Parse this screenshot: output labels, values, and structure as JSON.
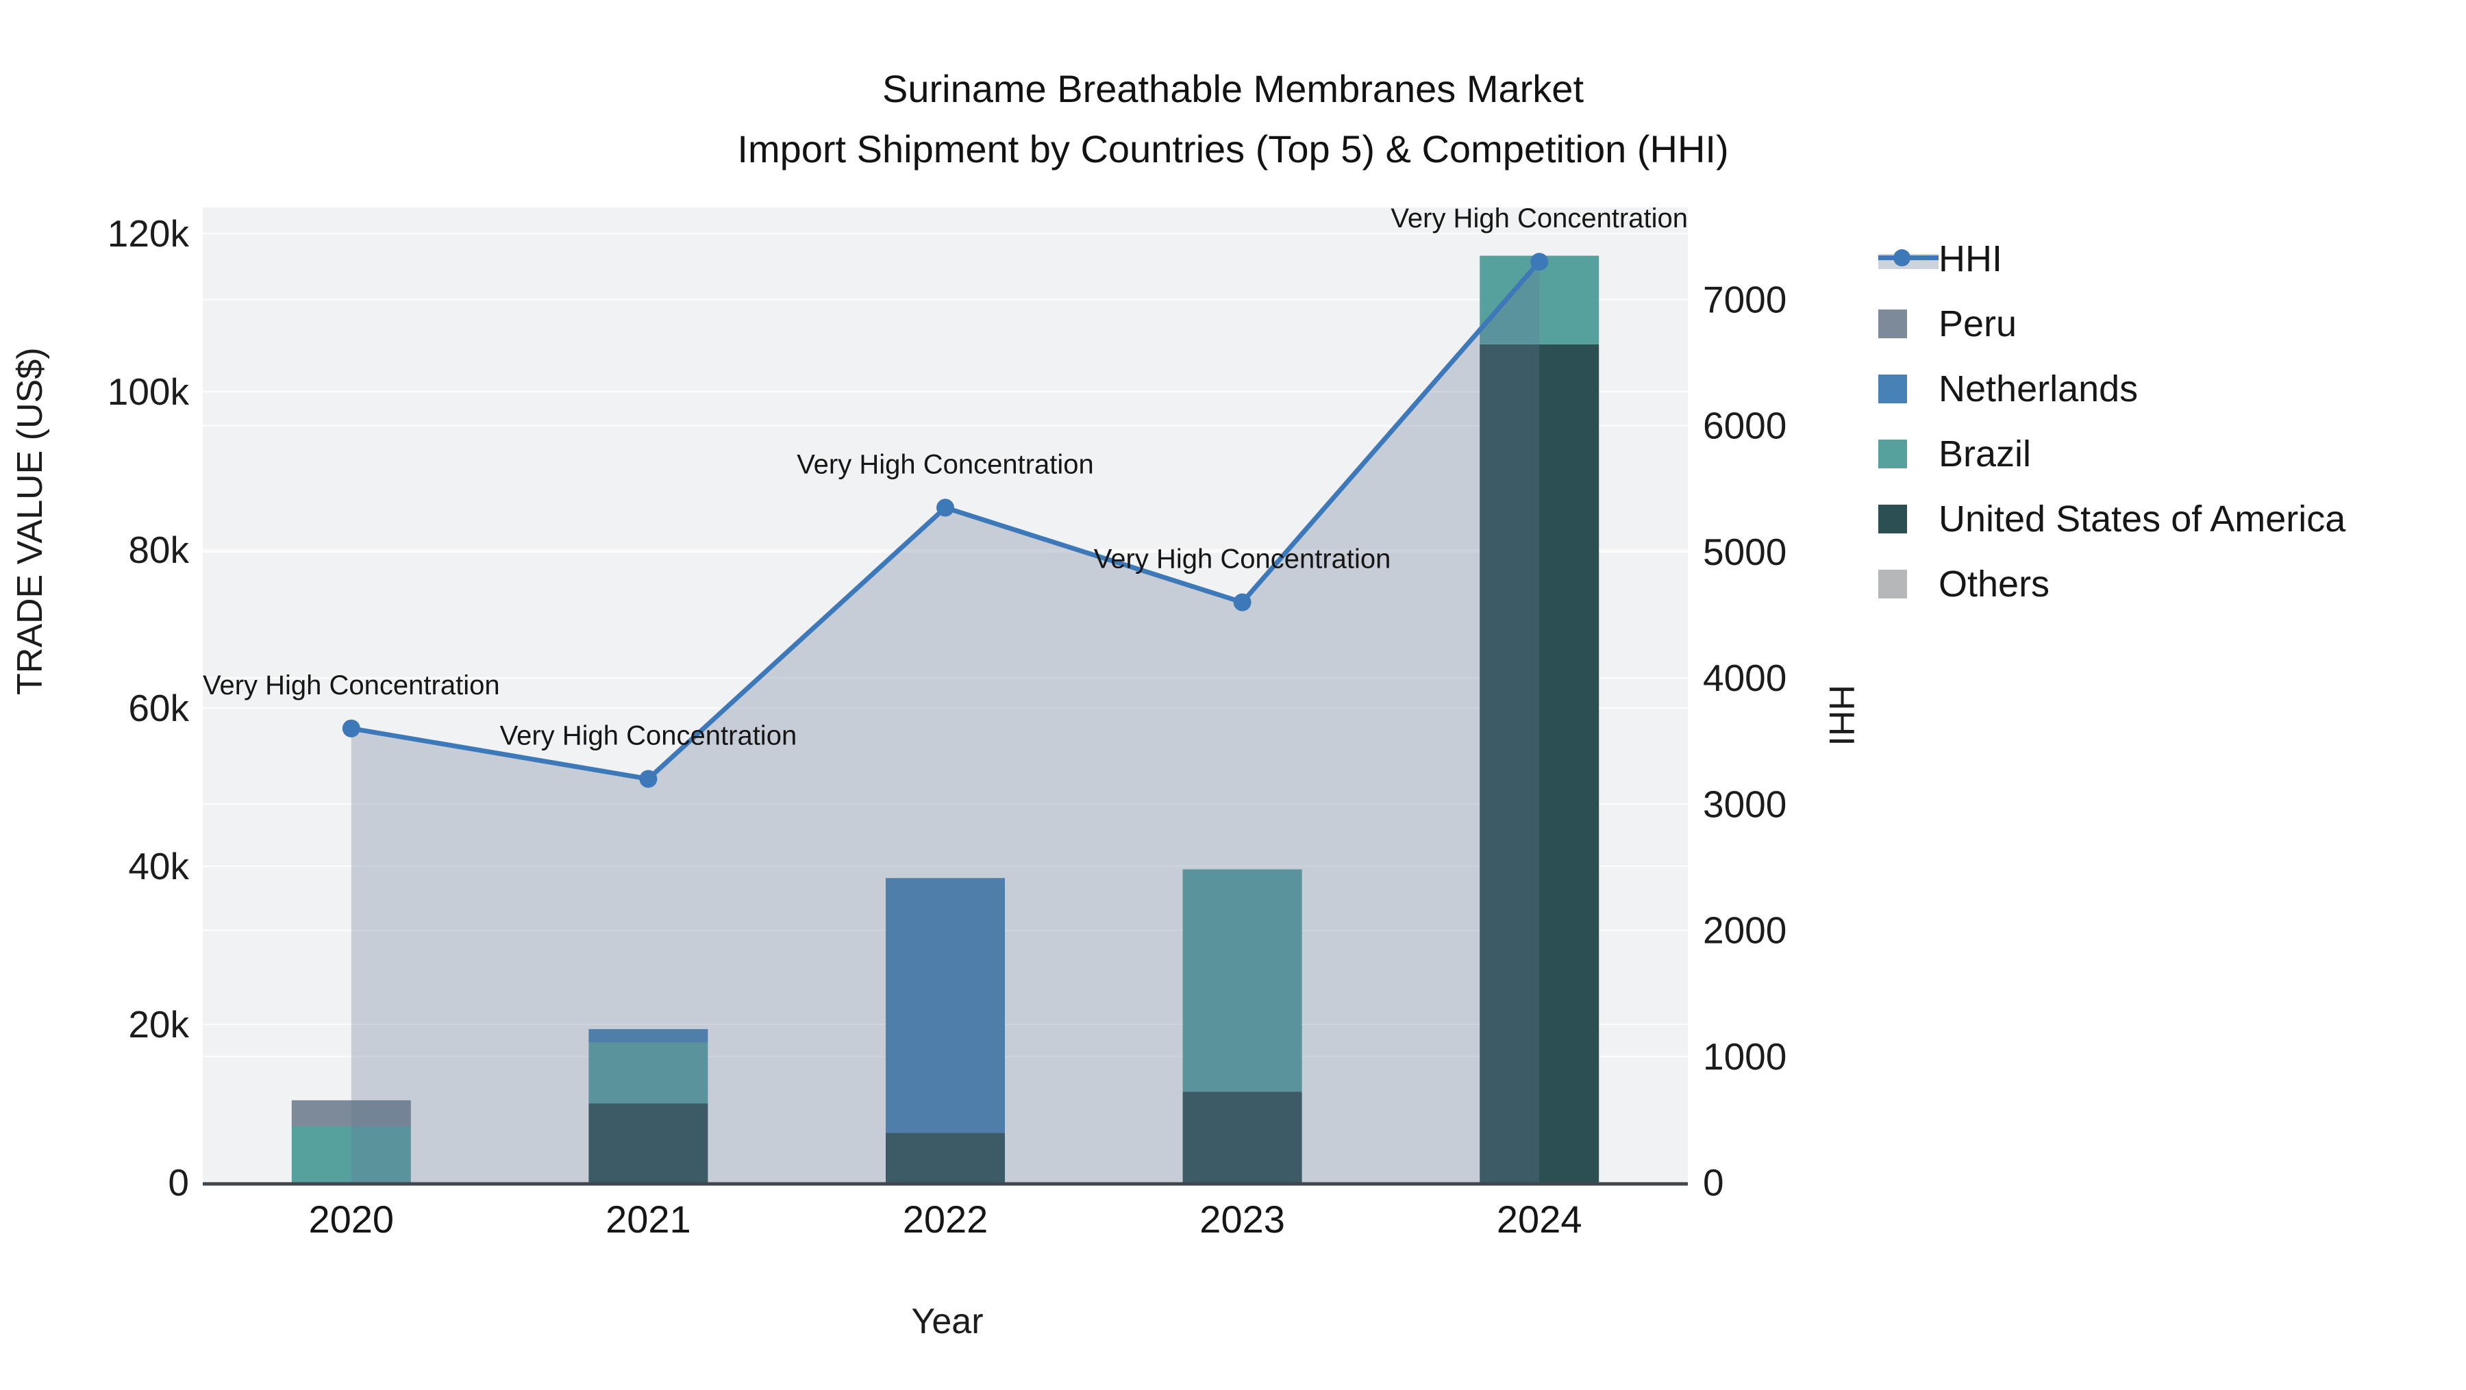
{
  "title": {
    "line1": "Suriname Breathable Membranes Market",
    "line2": "Import Shipment by Countries (Top 5) & Competition (HHI)"
  },
  "axes": {
    "x": {
      "title": "Year",
      "categories": [
        "2020",
        "2021",
        "2022",
        "2023",
        "2024"
      ]
    },
    "y_left": {
      "title": "TRADE VALUE (US$)",
      "ticks": [
        {
          "value": 0,
          "label": "0"
        },
        {
          "value": 20,
          "label": "20k"
        },
        {
          "value": 40,
          "label": "40k"
        },
        {
          "value": 60,
          "label": "60k"
        },
        {
          "value": 80,
          "label": "80k"
        },
        {
          "value": 100,
          "label": "100k"
        },
        {
          "value": 120,
          "label": "120k"
        }
      ]
    },
    "y_right": {
      "title": "HHI",
      "ticks": [
        {
          "value": 0,
          "label": "0"
        },
        {
          "value": 1000,
          "label": "1000"
        },
        {
          "value": 2000,
          "label": "2000"
        },
        {
          "value": 3000,
          "label": "3000"
        },
        {
          "value": 4000,
          "label": "4000"
        },
        {
          "value": 5000,
          "label": "5000"
        },
        {
          "value": 6000,
          "label": "6000"
        },
        {
          "value": 7000,
          "label": "7000"
        }
      ]
    }
  },
  "legend": [
    {
      "label": "HHI",
      "type": "line",
      "color": "#3d79b8"
    },
    {
      "label": "Peru",
      "type": "square",
      "color": "#7c8a99"
    },
    {
      "label": "Netherlands",
      "type": "square",
      "color": "#4781b5"
    },
    {
      "label": "Brazil",
      "type": "square",
      "color": "#56a09e"
    },
    {
      "label": "United States of America",
      "type": "square",
      "color": "#2c4f54"
    },
    {
      "label": "Others",
      "type": "square",
      "color": "#b5b7b9"
    }
  ],
  "chart_data": {
    "type": "bar+line",
    "categories": [
      "2020",
      "2021",
      "2022",
      "2023",
      "2024"
    ],
    "bar_value_unit": "US$ thousands",
    "stack_order_bottom_to_top": [
      "United States of America",
      "Brazil",
      "Netherlands",
      "Peru",
      "Others"
    ],
    "series": [
      {
        "name": "United States of America",
        "color": "#2c4f54",
        "values": [
          0,
          10.0,
          6.3,
          11.5,
          106.0
        ]
      },
      {
        "name": "Brazil",
        "color": "#56a09e",
        "values": [
          7.1,
          7.7,
          0,
          28.1,
          11.2
        ]
      },
      {
        "name": "Netherlands",
        "color": "#4781b5",
        "values": [
          0,
          1.7,
          32.2,
          0,
          0
        ]
      },
      {
        "name": "Peru",
        "color": "#7c8a99",
        "values": [
          3.3,
          0,
          0,
          0,
          0
        ]
      },
      {
        "name": "Others",
        "color": "#b5b7b9",
        "values": [
          0,
          0,
          0,
          0,
          0
        ]
      }
    ],
    "line_series": {
      "name": "HHI",
      "color": "#3d79b8",
      "fill_color": "rgba(100,118,148,0.30)",
      "values": [
        3600,
        3200,
        5350,
        4600,
        7300
      ],
      "annotation_text": "Very High Concentration"
    },
    "ylim_left_k": [
      0,
      123.3
    ],
    "ylim_right": [
      0,
      7730
    ],
    "plot_background": "#f1f2f3",
    "gridline_color": "rgba(255,255,255,0.85)",
    "axis_line_color": "#40464c",
    "grid_on": true,
    "legend_position": "right"
  }
}
